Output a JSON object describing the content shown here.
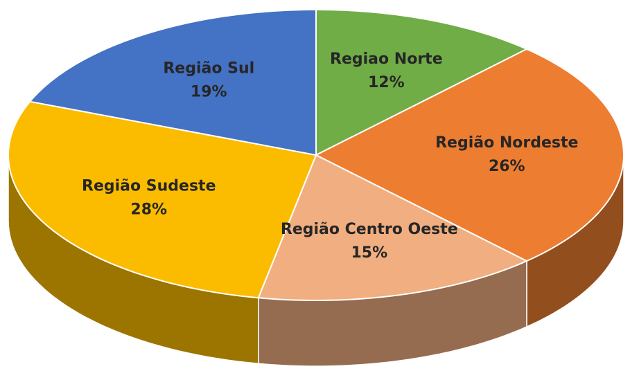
{
  "chart_data": {
    "type": "pie",
    "categories": [
      "Regiao Norte",
      "Região Nordeste",
      "Região Centro Oeste",
      "Região Sudeste",
      "Região Sul"
    ],
    "values": [
      12,
      26,
      15,
      28,
      19
    ],
    "value_labels": [
      "12%",
      "26%",
      "15%",
      "28%",
      "19%"
    ],
    "colors": [
      "#70ad47",
      "#ed7d31",
      "#f1ae80",
      "#fbbc00",
      "#4472c4"
    ]
  }
}
